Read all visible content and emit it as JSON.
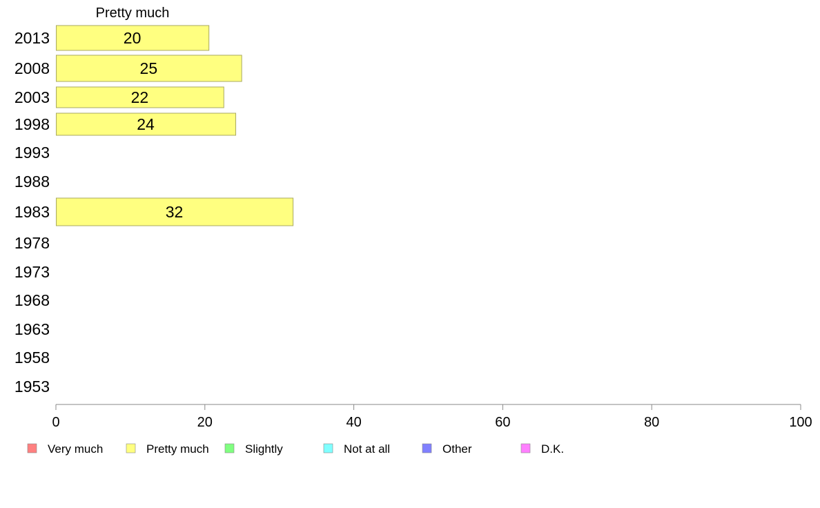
{
  "chart_data": {
    "type": "bar",
    "orientation": "horizontal",
    "series_title": "Pretty much",
    "categories": [
      "2013",
      "2008",
      "2003",
      "1998",
      "1993",
      "1988",
      "1983",
      "1978",
      "1973",
      "1968",
      "1963",
      "1958",
      "1953"
    ],
    "series": [
      {
        "name": "Pretty much",
        "values": [
          20.5,
          24.9,
          22.5,
          24.1,
          null,
          null,
          31.8,
          null,
          null,
          null,
          null,
          null,
          null
        ]
      }
    ],
    "data_labels": [
      "20",
      "25",
      "22",
      "24",
      "",
      "",
      "32",
      "",
      "",
      "",
      "",
      "",
      ""
    ],
    "xlim": [
      0,
      100
    ],
    "xticks": [
      0,
      20,
      40,
      60,
      80,
      100
    ],
    "grid": false,
    "legend": {
      "placement": "bottom",
      "items": [
        {
          "label": "Very much",
          "color": "#ff8080"
        },
        {
          "label": "Pretty much",
          "color": "#ffff80"
        },
        {
          "label": "Slightly",
          "color": "#80ff80"
        },
        {
          "label": "Not at all",
          "color": "#80ffff"
        },
        {
          "label": "Other",
          "color": "#8080ff"
        },
        {
          "label": "D.K.",
          "color": "#ff80ff"
        }
      ]
    },
    "bar_color": "#ffff80",
    "bar_border_color": "#a8a860",
    "axis_color": "#888888"
  }
}
